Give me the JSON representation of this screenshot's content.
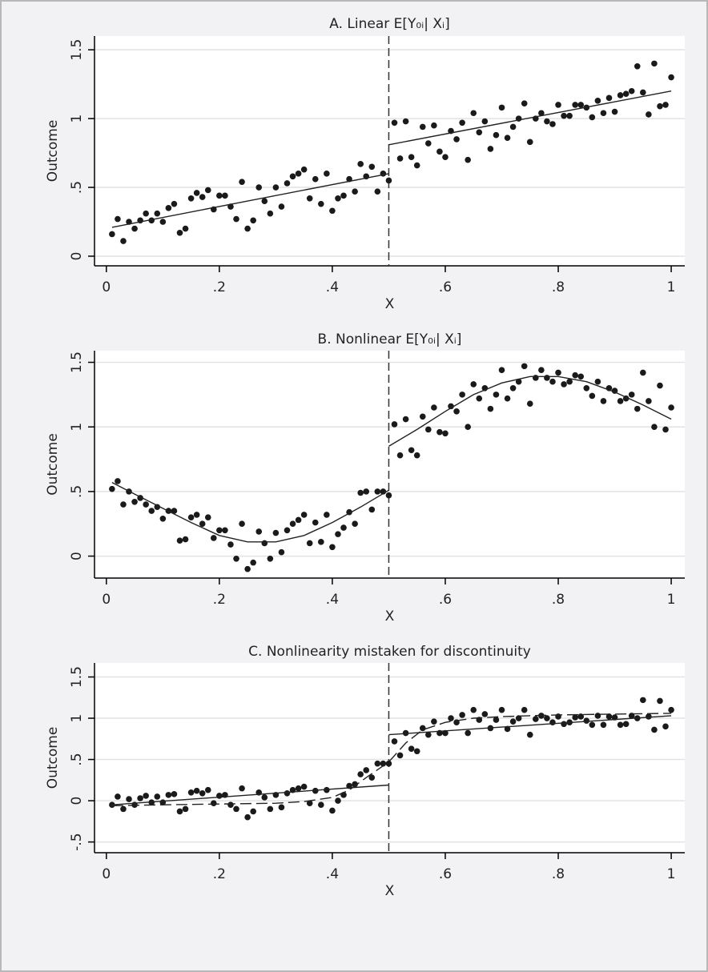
{
  "chart_data": [
    {
      "type": "scatter",
      "title": "A. Linear E[Y₀ᵢ| Xᵢ]",
      "x_label": "X",
      "y_label": "Outcome",
      "xlim": [
        -0.021,
        1.024
      ],
      "ylim": [
        -0.07,
        1.6
      ],
      "xticks": [
        0,
        {
          "value": 0.2,
          "label": ".2"
        },
        {
          "value": 0.4,
          "label": ".4"
        },
        {
          "value": 0.6,
          "label": ".6"
        },
        {
          "value": 0.8,
          "label": ".8"
        },
        1
      ],
      "yticks": [
        0,
        {
          "value": 0.5,
          "label": ".5"
        },
        1,
        1.5
      ],
      "grid": true,
      "color": "#1a1a1a",
      "cutoff": 0.5,
      "x": [
        0.01,
        0.02,
        0.03,
        0.04,
        0.05,
        0.06,
        0.07,
        0.08,
        0.09,
        0.1,
        0.11,
        0.12,
        0.13,
        0.14,
        0.15,
        0.16,
        0.17,
        0.18,
        0.19,
        0.2,
        0.21,
        0.22,
        0.23,
        0.24,
        0.25,
        0.26,
        0.27,
        0.28,
        0.29,
        0.3,
        0.31,
        0.32,
        0.33,
        0.34,
        0.35,
        0.36,
        0.37,
        0.38,
        0.39,
        0.4,
        0.41,
        0.42,
        0.43,
        0.44,
        0.45,
        0.46,
        0.47,
        0.48,
        0.49,
        0.5,
        0.51,
        0.52,
        0.53,
        0.54,
        0.55,
        0.56,
        0.57,
        0.58,
        0.59,
        0.6,
        0.61,
        0.62,
        0.63,
        0.64,
        0.65,
        0.66,
        0.67,
        0.68,
        0.69,
        0.7,
        0.71,
        0.72,
        0.73,
        0.74,
        0.75,
        0.76,
        0.77,
        0.78,
        0.79,
        0.8,
        0.81,
        0.82,
        0.83,
        0.84,
        0.85,
        0.86,
        0.87,
        0.88,
        0.89,
        0.9,
        0.91,
        0.92,
        0.93,
        0.94,
        0.95,
        0.96,
        0.97,
        0.98,
        0.99,
        1.0
      ],
      "y": [
        0.16,
        0.27,
        0.11,
        0.25,
        0.2,
        0.26,
        0.31,
        0.26,
        0.31,
        0.25,
        0.35,
        0.38,
        0.17,
        0.2,
        0.42,
        0.46,
        0.43,
        0.48,
        0.34,
        0.44,
        0.44,
        0.36,
        0.27,
        0.54,
        0.2,
        0.26,
        0.5,
        0.4,
        0.31,
        0.5,
        0.36,
        0.53,
        0.58,
        0.6,
        0.63,
        0.42,
        0.56,
        0.38,
        0.6,
        0.33,
        0.42,
        0.44,
        0.56,
        0.47,
        0.67,
        0.58,
        0.65,
        0.47,
        0.6,
        0.55,
        0.97,
        0.71,
        0.98,
        0.72,
        0.66,
        0.94,
        0.82,
        0.95,
        0.76,
        0.72,
        0.91,
        0.85,
        0.97,
        0.7,
        1.04,
        0.9,
        0.98,
        0.78,
        0.88,
        1.08,
        0.86,
        0.94,
        1.0,
        1.11,
        0.83,
        1.0,
        1.04,
        0.98,
        0.96,
        1.1,
        1.02,
        1.02,
        1.1,
        1.1,
        1.08,
        1.01,
        1.13,
        1.04,
        1.15,
        1.05,
        1.17,
        1.18,
        1.2,
        1.38,
        1.19,
        1.03,
        1.4,
        1.09,
        1.1,
        1.3
      ],
      "fits": [
        {
          "x": [
            0.01,
            0.5
          ],
          "y": [
            0.21,
            0.6
          ],
          "dash": false
        },
        {
          "x": [
            0.5,
            1.0
          ],
          "y": [
            0.81,
            1.2
          ],
          "dash": false
        }
      ]
    },
    {
      "type": "scatter",
      "title": "B. Nonlinear E[Y₀ᵢ| Xᵢ]",
      "x_label": "X",
      "y_label": "Outcome",
      "xlim": [
        -0.021,
        1.024
      ],
      "ylim": [
        -0.17,
        1.59
      ],
      "xticks": [
        0,
        {
          "value": 0.2,
          "label": ".2"
        },
        {
          "value": 0.4,
          "label": ".4"
        },
        {
          "value": 0.6,
          "label": ".6"
        },
        {
          "value": 0.8,
          "label": ".8"
        },
        1
      ],
      "yticks": [
        0,
        {
          "value": 0.5,
          "label": ".5"
        },
        1,
        1.5
      ],
      "grid": true,
      "color": "#1a1a1a",
      "cutoff": 0.5,
      "x": [
        0.01,
        0.02,
        0.03,
        0.04,
        0.05,
        0.06,
        0.07,
        0.08,
        0.09,
        0.1,
        0.11,
        0.12,
        0.13,
        0.14,
        0.15,
        0.16,
        0.17,
        0.18,
        0.19,
        0.2,
        0.21,
        0.22,
        0.23,
        0.24,
        0.25,
        0.26,
        0.27,
        0.28,
        0.29,
        0.3,
        0.31,
        0.32,
        0.33,
        0.34,
        0.35,
        0.36,
        0.37,
        0.38,
        0.39,
        0.4,
        0.41,
        0.42,
        0.43,
        0.44,
        0.45,
        0.46,
        0.47,
        0.48,
        0.49,
        0.5,
        0.51,
        0.52,
        0.53,
        0.54,
        0.55,
        0.56,
        0.57,
        0.58,
        0.59,
        0.6,
        0.61,
        0.62,
        0.63,
        0.64,
        0.65,
        0.66,
        0.67,
        0.68,
        0.69,
        0.7,
        0.71,
        0.72,
        0.73,
        0.74,
        0.75,
        0.76,
        0.77,
        0.78,
        0.79,
        0.8,
        0.81,
        0.82,
        0.83,
        0.84,
        0.85,
        0.86,
        0.87,
        0.88,
        0.89,
        0.9,
        0.91,
        0.92,
        0.93,
        0.94,
        0.95,
        0.96,
        0.97,
        0.98,
        0.99,
        1.0
      ],
      "y": [
        0.52,
        0.58,
        0.4,
        0.5,
        0.42,
        0.45,
        0.4,
        0.35,
        0.38,
        0.29,
        0.35,
        0.35,
        0.12,
        0.13,
        0.3,
        0.32,
        0.25,
        0.3,
        0.14,
        0.2,
        0.2,
        0.09,
        -0.02,
        0.25,
        -0.1,
        -0.05,
        0.19,
        0.1,
        -0.02,
        0.18,
        0.03,
        0.2,
        0.25,
        0.28,
        0.32,
        0.1,
        0.26,
        0.11,
        0.32,
        0.07,
        0.17,
        0.22,
        0.34,
        0.25,
        0.49,
        0.5,
        0.36,
        0.5,
        0.5,
        0.47,
        1.02,
        0.78,
        1.06,
        0.82,
        0.78,
        1.08,
        0.98,
        1.15,
        0.96,
        0.95,
        1.16,
        1.12,
        1.25,
        1.0,
        1.33,
        1.22,
        1.3,
        1.14,
        1.25,
        1.44,
        1.22,
        1.3,
        1.35,
        1.47,
        1.18,
        1.38,
        1.44,
        1.38,
        1.35,
        1.42,
        1.33,
        1.35,
        1.4,
        1.39,
        1.3,
        1.24,
        1.35,
        1.2,
        1.3,
        1.28,
        1.2,
        1.22,
        1.25,
        1.14,
        1.42,
        1.2,
        1.0,
        1.32,
        0.98,
        1.15
      ],
      "fits": [
        {
          "x": [
            0.01,
            0.05,
            0.1,
            0.15,
            0.2,
            0.25,
            0.3,
            0.35,
            0.4,
            0.45,
            0.5
          ],
          "y": [
            0.57,
            0.48,
            0.37,
            0.26,
            0.16,
            0.11,
            0.11,
            0.16,
            0.26,
            0.38,
            0.51
          ],
          "dash": false
        },
        {
          "x": [
            0.5,
            0.55,
            0.6,
            0.65,
            0.7,
            0.75,
            0.8,
            0.85,
            0.9,
            0.95,
            1.0
          ],
          "y": [
            0.85,
            0.98,
            1.12,
            1.25,
            1.34,
            1.39,
            1.39,
            1.35,
            1.27,
            1.17,
            1.06
          ],
          "dash": false
        }
      ]
    },
    {
      "type": "scatter",
      "title": "C. Nonlinearity mistaken for discontinuity",
      "x_label": "X",
      "y_label": "Outcome",
      "xlim": [
        -0.021,
        1.024
      ],
      "ylim": [
        -0.63,
        1.67
      ],
      "xticks": [
        0,
        {
          "value": 0.2,
          "label": ".2"
        },
        {
          "value": 0.4,
          "label": ".4"
        },
        {
          "value": 0.6,
          "label": ".6"
        },
        {
          "value": 0.8,
          "label": ".8"
        },
        1
      ],
      "yticks": [
        {
          "value": -0.5,
          "label": "-.5"
        },
        0,
        {
          "value": 0.5,
          "label": ".5"
        },
        1,
        1.5
      ],
      "grid": true,
      "color": "#1a1a1a",
      "cutoff": 0.5,
      "x": [
        0.01,
        0.02,
        0.03,
        0.04,
        0.05,
        0.06,
        0.07,
        0.08,
        0.09,
        0.1,
        0.11,
        0.12,
        0.13,
        0.14,
        0.15,
        0.16,
        0.17,
        0.18,
        0.19,
        0.2,
        0.21,
        0.22,
        0.23,
        0.24,
        0.25,
        0.26,
        0.27,
        0.28,
        0.29,
        0.3,
        0.31,
        0.32,
        0.33,
        0.34,
        0.35,
        0.36,
        0.37,
        0.38,
        0.39,
        0.4,
        0.41,
        0.42,
        0.43,
        0.44,
        0.45,
        0.46,
        0.47,
        0.48,
        0.49,
        0.5,
        0.51,
        0.52,
        0.53,
        0.54,
        0.55,
        0.56,
        0.57,
        0.58,
        0.59,
        0.6,
        0.61,
        0.62,
        0.63,
        0.64,
        0.65,
        0.66,
        0.67,
        0.68,
        0.69,
        0.7,
        0.71,
        0.72,
        0.73,
        0.74,
        0.75,
        0.76,
        0.77,
        0.78,
        0.79,
        0.8,
        0.81,
        0.82,
        0.83,
        0.84,
        0.85,
        0.86,
        0.87,
        0.88,
        0.89,
        0.9,
        0.91,
        0.92,
        0.93,
        0.94,
        0.95,
        0.96,
        0.97,
        0.98,
        0.99,
        1.0
      ],
      "y": [
        -0.05,
        0.05,
        -0.1,
        0.02,
        -0.05,
        0.03,
        0.06,
        -0.02,
        0.05,
        -0.02,
        0.07,
        0.08,
        -0.13,
        -0.1,
        0.1,
        0.12,
        0.09,
        0.13,
        -0.03,
        0.06,
        0.07,
        -0.05,
        -0.1,
        0.15,
        -0.2,
        -0.13,
        0.1,
        0.04,
        -0.1,
        0.07,
        -0.08,
        0.09,
        0.13,
        0.15,
        0.17,
        -0.03,
        0.12,
        -0.05,
        0.13,
        -0.12,
        0.0,
        0.07,
        0.18,
        0.2,
        0.32,
        0.37,
        0.28,
        0.45,
        0.45,
        0.45,
        0.72,
        0.55,
        0.82,
        0.63,
        0.6,
        0.88,
        0.8,
        0.96,
        0.82,
        0.82,
        1.0,
        0.95,
        1.04,
        0.82,
        1.1,
        0.98,
        1.05,
        0.88,
        0.98,
        1.1,
        0.87,
        0.96,
        1.0,
        1.1,
        0.8,
        0.99,
        1.03,
        1.0,
        0.95,
        1.02,
        0.93,
        0.95,
        1.01,
        1.02,
        0.97,
        0.92,
        1.03,
        0.92,
        1.02,
        1.01,
        0.92,
        0.93,
        1.03,
        1.0,
        1.22,
        1.02,
        0.86,
        1.21,
        0.9,
        1.1
      ],
      "fits": [
        {
          "x": [
            0.01,
            0.5
          ],
          "y": [
            -0.05,
            0.19
          ],
          "dash": false
        },
        {
          "x": [
            0.5,
            1.0
          ],
          "y": [
            0.8,
            1.03
          ],
          "dash": false
        },
        {
          "x": [
            0.01,
            0.1,
            0.2,
            0.3,
            0.35,
            0.4,
            0.43,
            0.46,
            0.5,
            0.53,
            0.56,
            0.6,
            0.65,
            0.7,
            0.8,
            0.9,
            1.0
          ],
          "y": [
            -0.06,
            -0.05,
            -0.04,
            -0.03,
            -0.01,
            0.04,
            0.13,
            0.28,
            0.47,
            0.7,
            0.86,
            0.95,
            1.0,
            1.02,
            1.04,
            1.05,
            1.06
          ],
          "dash": true
        }
      ]
    }
  ]
}
